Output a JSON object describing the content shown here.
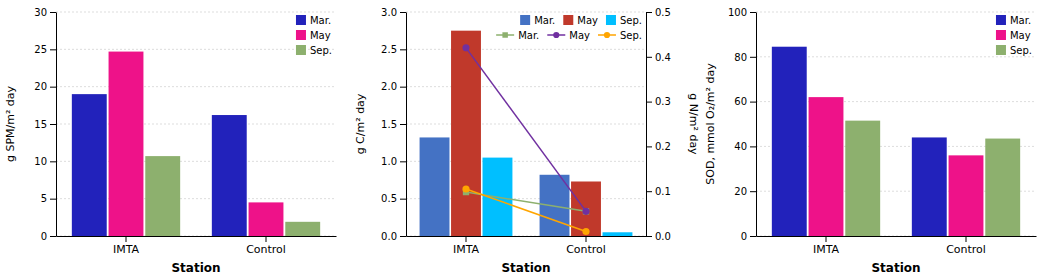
{
  "chart_data": [
    {
      "type": "bar",
      "xlabel": "Station",
      "ylabel": "g SPM/m² day",
      "categories": [
        "IMTA",
        "Control"
      ],
      "series": [
        {
          "name": "Mar.",
          "color": "#2222BB",
          "values": [
            19.0,
            16.2
          ]
        },
        {
          "name": "May",
          "color": "#EE1289",
          "values": [
            24.7,
            4.5
          ]
        },
        {
          "name": "Sep.",
          "color": "#8DB06E",
          "values": [
            10.7,
            1.9
          ]
        }
      ],
      "ylim": [
        0,
        30
      ],
      "yticks": [
        0,
        5,
        10,
        15,
        20,
        25,
        30
      ],
      "grid": true,
      "legend": "upper right"
    },
    {
      "type": "bar",
      "xlabel": "Station",
      "ylabel": "g C/m² day",
      "y2label": "g N/m² day",
      "categories": [
        "IMTA",
        "Control"
      ],
      "series": [
        {
          "name": "Mar.",
          "type": "bar",
          "color": "#4472C4",
          "values": [
            1.32,
            0.82
          ]
        },
        {
          "name": "May",
          "type": "bar",
          "color": "#C0392B",
          "values": [
            2.75,
            0.73
          ]
        },
        {
          "name": "Sep.",
          "type": "bar",
          "color": "#00BFFF",
          "values": [
            1.05,
            0.05
          ]
        },
        {
          "name": "Mar.",
          "type": "line",
          "axis": "y2",
          "color": "#8DB06E",
          "marker": "square",
          "values": [
            0.098,
            0.055
          ]
        },
        {
          "name": "May",
          "type": "line",
          "axis": "y2",
          "color": "#7030A0",
          "marker": "circle",
          "values": [
            0.42,
            0.055
          ]
        },
        {
          "name": "Sep.",
          "type": "line",
          "axis": "y2",
          "color": "#FFA500",
          "marker": "circle",
          "values": [
            0.105,
            0.01
          ]
        }
      ],
      "ylim": [
        0,
        3.0
      ],
      "yticks": [
        {
          "value": 0,
          "label": "0.0"
        },
        0.5,
        {
          "value": 1,
          "label": "1.0"
        },
        1.5,
        {
          "value": 2,
          "label": "2.0"
        },
        2.5,
        {
          "value": 3,
          "label": "3.0"
        }
      ],
      "y2lim": [
        0,
        0.5
      ],
      "y2ticks": [
        {
          "value": 0,
          "label": "0.0"
        },
        0.1,
        0.2,
        0.3,
        0.4,
        0.5
      ],
      "grid": true,
      "legend": "upper right"
    },
    {
      "type": "bar",
      "xlabel": "Station",
      "ylabel": "SOD, mmol O₂/m² day",
      "categories": [
        "IMTA",
        "Control"
      ],
      "series": [
        {
          "name": "Mar.",
          "color": "#2222BB",
          "values": [
            84.5,
            44.0
          ]
        },
        {
          "name": "May",
          "color": "#EE1289",
          "values": [
            62.0,
            36.0
          ]
        },
        {
          "name": "Sep.",
          "color": "#8DB06E",
          "values": [
            51.5,
            43.5
          ]
        }
      ],
      "ylim": [
        0,
        100
      ],
      "yticks": [
        0,
        20,
        40,
        60,
        80,
        100
      ],
      "grid": true,
      "legend": "upper right"
    }
  ]
}
